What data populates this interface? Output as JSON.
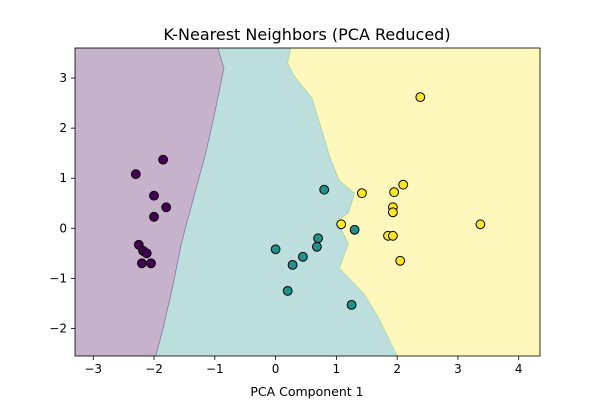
{
  "chart_data": {
    "type": "scatter",
    "title": "K-Nearest Neighbors (PCA Reduced)",
    "xlabel": "PCA Component 1",
    "ylabel": "",
    "xlim": [
      -3.3,
      4.35
    ],
    "ylim": [
      -2.55,
      3.6
    ],
    "xticks": [
      -3,
      -2,
      -1,
      0,
      1,
      2,
      3,
      4
    ],
    "yticks": [
      -2,
      -1,
      0,
      1,
      2,
      3
    ],
    "grid": false,
    "decision_regions": {
      "class_colors": [
        "#440154",
        "#21918c",
        "#fde725"
      ],
      "fill_opacity": 0.3,
      "regions": [
        {
          "class": 0,
          "polygon": [
            [
              -3.3,
              3.6
            ],
            [
              -0.95,
              3.6
            ],
            [
              -0.85,
              3.2
            ],
            [
              -1.0,
              2.3
            ],
            [
              -1.15,
              1.5
            ],
            [
              -1.35,
              0.6
            ],
            [
              -1.55,
              -0.3
            ],
            [
              -1.7,
              -1.2
            ],
            [
              -1.85,
              -2.0
            ],
            [
              -1.97,
              -2.55
            ],
            [
              -3.3,
              -2.55
            ]
          ]
        },
        {
          "class": 1,
          "polygon": [
            [
              -0.95,
              3.6
            ],
            [
              0.25,
              3.6
            ],
            [
              0.2,
              3.3
            ],
            [
              0.3,
              3.05
            ],
            [
              0.6,
              2.6
            ],
            [
              0.75,
              2.0
            ],
            [
              0.9,
              1.4
            ],
            [
              1.05,
              0.95
            ],
            [
              1.3,
              0.7
            ],
            [
              1.2,
              0.3
            ],
            [
              1.0,
              0.15
            ],
            [
              1.2,
              -0.3
            ],
            [
              1.05,
              -0.8
            ],
            [
              1.45,
              -1.3
            ],
            [
              1.7,
              -1.8
            ],
            [
              1.9,
              -2.3
            ],
            [
              2.0,
              -2.55
            ],
            [
              -1.97,
              -2.55
            ],
            [
              -1.85,
              -2.0
            ],
            [
              -1.7,
              -1.2
            ],
            [
              -1.55,
              -0.3
            ],
            [
              -1.35,
              0.6
            ],
            [
              -1.15,
              1.5
            ],
            [
              -1.0,
              2.3
            ],
            [
              -0.85,
              3.2
            ]
          ]
        },
        {
          "class": 2,
          "polygon": [
            [
              0.25,
              3.6
            ],
            [
              4.35,
              3.6
            ],
            [
              4.35,
              -2.55
            ],
            [
              2.0,
              -2.55
            ],
            [
              1.9,
              -2.3
            ],
            [
              1.7,
              -1.8
            ],
            [
              1.45,
              -1.3
            ],
            [
              1.05,
              -0.8
            ],
            [
              1.2,
              -0.3
            ],
            [
              1.0,
              0.15
            ],
            [
              1.2,
              0.3
            ],
            [
              1.3,
              0.7
            ],
            [
              1.05,
              0.95
            ],
            [
              0.9,
              1.4
            ],
            [
              0.75,
              2.0
            ],
            [
              0.6,
              2.6
            ],
            [
              0.3,
              3.05
            ],
            [
              0.2,
              3.3
            ]
          ]
        }
      ]
    },
    "series": [
      {
        "class": 0,
        "color": "#440154",
        "points": [
          [
            -2.3,
            1.08
          ],
          [
            -1.85,
            1.37
          ],
          [
            -2.0,
            0.65
          ],
          [
            -1.8,
            0.42
          ],
          [
            -2.0,
            0.23
          ],
          [
            -2.25,
            -0.33
          ],
          [
            -2.18,
            -0.45
          ],
          [
            -2.12,
            -0.5
          ],
          [
            -2.2,
            -0.7
          ],
          [
            -2.05,
            -0.7
          ]
        ]
      },
      {
        "class": 1,
        "color": "#21918c",
        "points": [
          [
            0.8,
            0.77
          ],
          [
            1.3,
            -0.03
          ],
          [
            0.7,
            -0.2
          ],
          [
            0.68,
            -0.37
          ],
          [
            0.0,
            -0.42
          ],
          [
            0.45,
            -0.57
          ],
          [
            0.28,
            -0.73
          ],
          [
            0.2,
            -1.25
          ],
          [
            1.25,
            -1.53
          ]
        ]
      },
      {
        "class": 2,
        "color": "#fde725",
        "points": [
          [
            2.38,
            2.62
          ],
          [
            2.1,
            0.87
          ],
          [
            1.42,
            0.7
          ],
          [
            1.95,
            0.72
          ],
          [
            1.93,
            0.42
          ],
          [
            1.93,
            0.32
          ],
          [
            1.08,
            0.08
          ],
          [
            3.37,
            0.08
          ],
          [
            1.85,
            -0.15
          ],
          [
            1.93,
            -0.15
          ],
          [
            2.05,
            -0.65
          ]
        ]
      }
    ]
  }
}
